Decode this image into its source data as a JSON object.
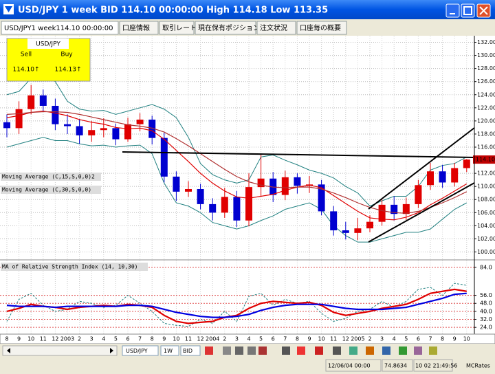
{
  "window": {
    "title": "USD/JPY 1 week BID 114.10 00:00:00 High 114.18 Low 113.35"
  },
  "tabs": [
    "USD/JPY1 week114.10 00:00:00",
    "口座情報",
    "取引レート",
    "現在保有ポジション",
    "注文状況",
    "口座毎の概要"
  ],
  "quote": {
    "pair": "USD/JPY",
    "sell_label": "Sell",
    "buy_label": "Buy",
    "sell": "114.10↑",
    "buy": "114.13↑"
  },
  "toolbar": {
    "symbol": "USD/JPY",
    "period": "1W",
    "side": "BID"
  },
  "status": {
    "date": "12/06/04 00:00",
    "value": "74.8634",
    "time": "10 02 21:49:56",
    "source": "MCRates"
  },
  "chart_data": [
    {
      "type": "candlestick",
      "categories": [
        "8",
        "9",
        "10",
        "11",
        "12",
        "2003",
        "2",
        "3",
        "4",
        "5",
        "6",
        "7",
        "8",
        "9",
        "10",
        "11",
        "12",
        "2004",
        "2",
        "3",
        "4",
        "5",
        "6",
        "7",
        "8",
        "9",
        "10",
        "11",
        "12",
        "2005",
        "2",
        "3",
        "4",
        "5",
        "6",
        "7",
        "8",
        "9",
        "10"
      ],
      "open": [
        119.8,
        118.9,
        121.8,
        123.9,
        122.3,
        119.5,
        119.2,
        117.8,
        118.6,
        118.9,
        117.2,
        119.5,
        120.2,
        117.4,
        111.5,
        109.2,
        109.6,
        107.3,
        106.0,
        108.4,
        104.8,
        109.9,
        111.2,
        108.7,
        111.4,
        110.1,
        110.3,
        106.2,
        103.3,
        102.9,
        103.6,
        104.6,
        107.2,
        105.8,
        107.3,
        110.2,
        112.3,
        110.6,
        112.8
      ],
      "high": [
        121.0,
        123.0,
        125.5,
        124.8,
        123.4,
        121.0,
        120.3,
        120.0,
        120.4,
        119.6,
        120.5,
        121.2,
        120.8,
        118.2,
        112.3,
        110.8,
        110.4,
        108.2,
        109.8,
        109.3,
        112.0,
        114.8,
        112.2,
        112.4,
        112.0,
        111.6,
        111.0,
        107.0,
        104.6,
        105.2,
        105.6,
        108.0,
        108.5,
        108.3,
        111.0,
        113.6,
        113.3,
        113.6,
        114.18
      ],
      "low": [
        117.5,
        118.0,
        121.0,
        121.5,
        118.6,
        118.0,
        116.5,
        116.8,
        117.5,
        116.3,
        116.8,
        118.4,
        116.4,
        110.6,
        107.8,
        108.4,
        106.5,
        104.8,
        105.2,
        103.8,
        103.9,
        108.5,
        107.6,
        107.9,
        108.9,
        109.0,
        105.6,
        102.5,
        101.9,
        101.8,
        103.0,
        104.0,
        104.8,
        104.9,
        106.7,
        109.5,
        109.8,
        110.0,
        112.2
      ],
      "close": [
        118.9,
        121.8,
        123.9,
        122.3,
        119.5,
        119.2,
        117.8,
        118.6,
        118.9,
        117.2,
        119.5,
        120.2,
        117.4,
        111.5,
        109.2,
        109.6,
        107.3,
        106.0,
        108.4,
        104.8,
        109.9,
        111.2,
        108.7,
        111.4,
        110.1,
        110.3,
        106.2,
        103.3,
        102.9,
        103.6,
        104.6,
        107.2,
        105.8,
        107.3,
        110.2,
        112.3,
        110.6,
        112.8,
        114.1
      ],
      "up_color": "#e00000",
      "down_color": "#0000d0",
      "series": [
        {
          "name": "Moving Average (C,15,S,0,0)2",
          "color": "#e00000",
          "values": [
            120.5,
            120.8,
            121.3,
            121.5,
            121.2,
            120.8,
            120.2,
            119.8,
            119.5,
            119.0,
            118.8,
            118.9,
            118.5,
            117.2,
            115.5,
            113.8,
            112.0,
            110.5,
            109.3,
            108.4,
            108.2,
            108.5,
            108.8,
            109.4,
            109.9,
            110.2,
            109.8,
            108.6,
            107.4,
            106.2,
            105.2,
            105.0,
            104.9,
            105.3,
            106.0,
            107.2,
            108.2,
            109.3,
            110.4
          ]
        },
        {
          "name": "Moving Average (C,30,S,0,0)",
          "color": "#b03030",
          "values": [
            121.0,
            121.1,
            121.3,
            121.4,
            121.4,
            121.3,
            121.0,
            120.6,
            120.2,
            119.8,
            119.4,
            119.2,
            118.9,
            118.3,
            117.3,
            116.2,
            115.0,
            113.8,
            112.6,
            111.5,
            110.7,
            110.2,
            109.9,
            109.8,
            109.9,
            109.9,
            109.6,
            109.0,
            108.3,
            107.5,
            106.8,
            106.3,
            106.0,
            105.9,
            106.2,
            106.8,
            107.5,
            108.3,
            109.2
          ]
        }
      ],
      "bands": {
        "color": "#208080",
        "upper": [
          124.0,
          124.5,
          126.5,
          126.8,
          126.0,
          123.0,
          121.8,
          121.5,
          121.6,
          121.0,
          121.5,
          122.0,
          122.5,
          121.8,
          120.5,
          117.5,
          113.5,
          111.8,
          111.0,
          110.5,
          111.0,
          114.5,
          114.8,
          114.0,
          113.3,
          112.5,
          112.0,
          111.3,
          110.0,
          109.0,
          107.0,
          107.8,
          108.5,
          108.5,
          110.0,
          112.5,
          113.2,
          113.5,
          114.5
        ],
        "lower": [
          116.0,
          116.5,
          117.0,
          117.5,
          117.0,
          117.0,
          116.5,
          116.2,
          116.3,
          116.0,
          116.2,
          116.3,
          115.0,
          110.5,
          107.5,
          107.0,
          106.0,
          104.5,
          104.0,
          103.5,
          104.0,
          104.8,
          105.5,
          106.5,
          107.0,
          107.5,
          106.5,
          104.0,
          102.5,
          101.5,
          101.5,
          102.0,
          102.5,
          103.0,
          103.0,
          103.5,
          105.0,
          106.5,
          107.5
        ]
      },
      "last_price": {
        "value": 114.1,
        "label": "114.10"
      },
      "ylim": [
        99,
        133
      ],
      "yticks": [
        {
          "value": 100,
          "label": "100.00"
        },
        {
          "value": 102,
          "label": "102.00"
        },
        {
          "value": 104,
          "label": "104.00"
        },
        {
          "value": 106,
          "label": "106.00"
        },
        {
          "value": 108,
          "label": "108.00"
        },
        {
          "value": 110,
          "label": "110.00"
        },
        {
          "value": 112,
          "label": "112.00"
        },
        {
          "value": 116,
          "label": "116.00"
        },
        {
          "value": 118,
          "label": "118.00"
        },
        {
          "value": 120,
          "label": "120.00"
        },
        {
          "value": 122,
          "label": "122.00"
        },
        {
          "value": 124,
          "label": "124.00"
        },
        {
          "value": 126,
          "label": "126.00"
        },
        {
          "value": 128,
          "label": "128.00"
        },
        {
          "value": 130,
          "label": "130.00"
        },
        {
          "value": 132,
          "label": "132.00"
        }
      ],
      "grid": true
    },
    {
      "type": "line",
      "title": "MA of Relative Strength Index (14, 10,30)",
      "series": [
        {
          "color": "#208080",
          "dashed": true,
          "values": [
            30,
            52,
            58,
            46,
            40,
            42,
            50,
            48,
            44,
            46,
            56,
            48,
            40,
            28,
            26,
            25,
            32,
            28,
            40,
            30,
            55,
            58,
            46,
            52,
            48,
            50,
            38,
            30,
            33,
            40,
            42,
            50,
            44,
            50,
            62,
            64,
            56,
            68,
            66
          ]
        },
        {
          "color": "#e00000",
          "values": [
            40,
            43,
            47,
            45,
            44,
            42,
            44,
            45,
            46,
            45,
            47,
            46,
            44,
            36,
            30,
            28,
            29,
            30,
            34,
            36,
            43,
            48,
            50,
            49,
            48,
            49,
            46,
            39,
            36,
            38,
            40,
            43,
            45,
            47,
            52,
            58,
            60,
            62,
            60
          ]
        },
        {
          "color": "#0000e0",
          "values": [
            46,
            45,
            45,
            45,
            44,
            45,
            45,
            45,
            45,
            45,
            46,
            46,
            45,
            42,
            39,
            37,
            35,
            34,
            34,
            35,
            37,
            41,
            44,
            46,
            47,
            47,
            47,
            45,
            43,
            42,
            42,
            42,
            43,
            44,
            47,
            50,
            53,
            57,
            58
          ]
        }
      ],
      "ylim": [
        20,
        88
      ],
      "yticks": [
        {
          "value": 24,
          "label": "24.0"
        },
        {
          "value": 32,
          "label": "32.0"
        },
        {
          "value": 40,
          "label": "40.0"
        },
        {
          "value": 48,
          "label": "48.0"
        },
        {
          "value": 56,
          "label": "56.0"
        },
        {
          "value": 84,
          "label": "84.0"
        }
      ],
      "grid": true
    }
  ]
}
